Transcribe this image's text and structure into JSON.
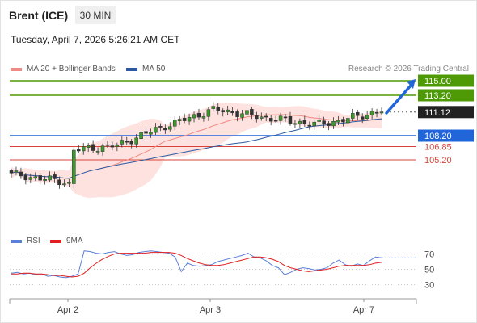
{
  "header": {
    "instrument": "Brent (ICE)",
    "timeframe": "30 MIN",
    "datetime": "Tuesday, April 7, 2026 5:26:21 AM CET",
    "credit": "Research © 2026 Trading Central"
  },
  "legend": {
    "bollinger_label": "MA 20 + Bollinger Bands",
    "bollinger_color": "#f08a84",
    "ma50_label": "MA 50",
    "ma50_color": "#2c5aa0",
    "rsi_label": "RSI",
    "rsi_color": "#5b7fd8",
    "rsi_ma_label": "9MA",
    "rsi_ma_color": "#e02020"
  },
  "chart_data": [
    {
      "type": "candlestick",
      "ylim": [
        98.5,
        116.2
      ],
      "x_ticks": [
        "Apr 2",
        "Apr 3",
        "Apr 7"
      ],
      "levels": [
        {
          "value": 115.0,
          "label": "115.00",
          "kind": "resistance",
          "color": "#4e9a06"
        },
        {
          "value": 113.2,
          "label": "113.20",
          "kind": "resistance",
          "color": "#4e9a06"
        },
        {
          "value": 111.12,
          "label": "111.12",
          "kind": "last_price",
          "color": "#222222"
        },
        {
          "value": 108.2,
          "label": "108.20",
          "kind": "pivot",
          "color": "#2166d9"
        },
        {
          "value": 106.85,
          "label": "106.85",
          "kind": "support",
          "color": "#d9443a"
        },
        {
          "value": 105.2,
          "label": "105.20",
          "kind": "support",
          "color": "#d9443a"
        }
      ],
      "projection_arrow": {
        "from": 111.2,
        "to": 115.0,
        "direction": "up"
      },
      "key_prices": [
        103.4,
        102.4,
        106.4,
        107.0,
        109.2,
        111.4,
        111.2,
        110.5,
        110.0,
        109.6,
        110.0,
        110.6,
        111.0,
        111.12
      ]
    },
    {
      "type": "line",
      "title": "RSI",
      "y_ticks": [
        70,
        50,
        30
      ],
      "ylim": [
        20,
        80
      ],
      "series": [
        {
          "name": "RSI",
          "values": [
            45,
            46,
            44,
            45,
            43,
            44,
            41,
            42,
            40,
            39,
            41,
            44,
            74,
            73,
            71,
            70,
            72,
            73,
            70,
            68,
            69,
            72,
            73,
            74,
            73,
            72,
            71,
            66,
            47,
            58,
            55,
            54,
            55,
            56,
            60,
            62,
            64,
            66,
            68,
            71,
            66,
            65,
            61,
            55,
            52,
            43,
            46,
            50,
            52,
            51,
            49,
            50,
            52,
            58,
            62,
            56,
            54,
            57,
            55,
            61,
            66,
            65
          ]
        },
        {
          "name": "9MA",
          "values": [
            44,
            44,
            45,
            45,
            44,
            44,
            43,
            42,
            42,
            41,
            40,
            41,
            45,
            52,
            58,
            63,
            67,
            70,
            71,
            71,
            71,
            71,
            71,
            72,
            72,
            72,
            72,
            71,
            68,
            64,
            61,
            58,
            56,
            55,
            55,
            56,
            58,
            60,
            62,
            64,
            66,
            66,
            65,
            63,
            60,
            55,
            52,
            50,
            48,
            47,
            48,
            49,
            50,
            52,
            54,
            55,
            55,
            55,
            55,
            56,
            58,
            59
          ]
        }
      ]
    }
  ]
}
